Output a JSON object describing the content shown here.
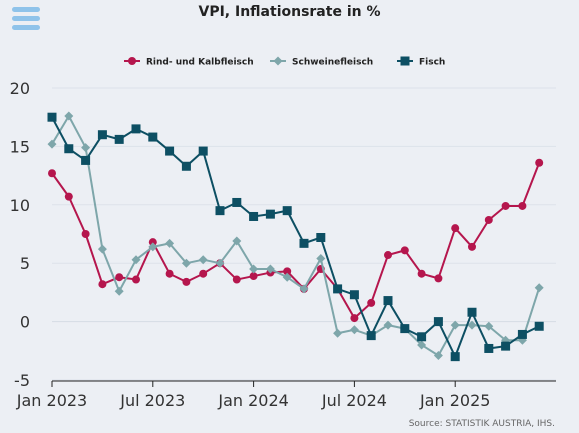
{
  "header": {
    "title": "VPI, Inflationsrate in %",
    "menu_icon": "hamburger-menu-icon"
  },
  "source": "Source: STATISTIK AUSTRIA, IHS.",
  "chart_data": {
    "type": "line",
    "title": "VPI, Inflationsrate in %",
    "xlabel": "",
    "ylabel": "",
    "ylim": [
      -5,
      20
    ],
    "yticks": [
      -5,
      0,
      5,
      10,
      15,
      20
    ],
    "x_tick_labels": [
      "Jan 2023",
      "Jul 2023",
      "Jan 2024",
      "Jul 2024",
      "Jan 2025"
    ],
    "x_start": "Jan 2023",
    "x_end": "Jan 2026",
    "grid": true,
    "legend_position": "top",
    "series": [
      {
        "name": "Rind- und Kalbfleisch",
        "color": "#b5164d",
        "marker": "circle",
        "values": [
          12.7,
          10.7,
          7.5,
          3.2,
          3.8,
          3.6,
          6.8,
          4.1,
          3.4,
          4.1,
          5.0,
          3.6,
          3.9,
          4.2,
          4.3,
          2.8,
          4.5,
          2.8,
          0.3,
          1.6,
          5.7,
          6.1,
          4.1,
          3.7,
          8.0,
          6.4,
          8.7,
          9.9,
          9.9,
          13.6
        ]
      },
      {
        "name": "Schweinefleisch",
        "color": "#7ea6aa",
        "marker": "diamond",
        "values": [
          15.2,
          17.6,
          14.9,
          6.2,
          2.6,
          5.3,
          6.4,
          6.7,
          5.0,
          5.3,
          5.0,
          6.9,
          4.5,
          4.5,
          3.8,
          2.8,
          5.4,
          -1.0,
          -0.7,
          -1.2,
          -0.3,
          -0.6,
          -2.0,
          -2.9,
          -0.3,
          -0.3,
          -0.4,
          -1.6,
          -1.6,
          2.9
        ]
      },
      {
        "name": "Fisch",
        "color": "#0d4f63",
        "marker": "square",
        "values": [
          17.5,
          14.8,
          13.8,
          16.0,
          15.6,
          16.5,
          15.8,
          14.6,
          13.3,
          14.6,
          9.5,
          10.2,
          9.0,
          9.2,
          9.5,
          6.7,
          7.2,
          2.8,
          2.3,
          -1.2,
          1.8,
          -0.6,
          -1.3,
          0.0,
          -3.0,
          0.8,
          -2.3,
          -2.1,
          -1.1,
          -0.4
        ]
      }
    ]
  }
}
